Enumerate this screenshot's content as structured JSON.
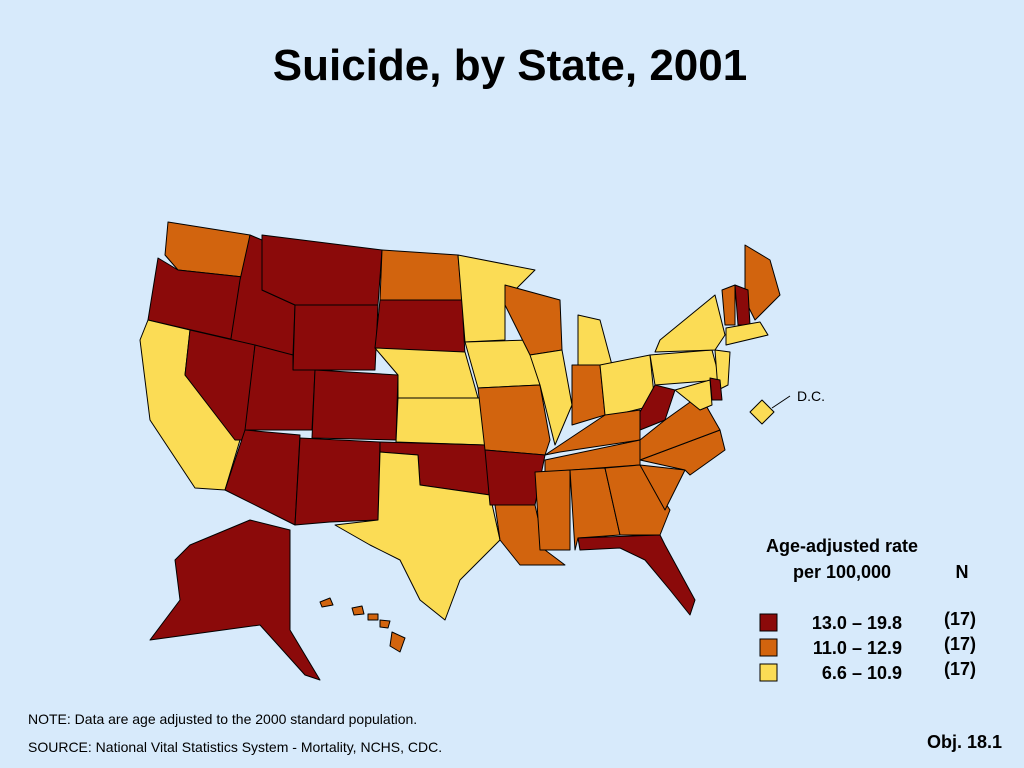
{
  "title": "Suicide, by State, 2001",
  "dc_label": "D.C.",
  "legend": {
    "heading": [
      "Age-adjusted rate",
      "per 100,000"
    ],
    "count_heading": "N",
    "items": [
      {
        "range": "13.0 – 19.8",
        "count": "(17)",
        "color": "#8b0a0a"
      },
      {
        "range": "11.0 – 12.9",
        "count": "(17)",
        "color": "#d2640e"
      },
      {
        "range": "6.6 – 10.9",
        "count": "(17)",
        "color": "#fbdc55"
      }
    ]
  },
  "note": "NOTE: Data are age adjusted to the 2000 standard population.",
  "source": "SOURCE: National Vital Statistics System - Mortality, NCHS, CDC.",
  "label": "Obj. 18.1"
}
